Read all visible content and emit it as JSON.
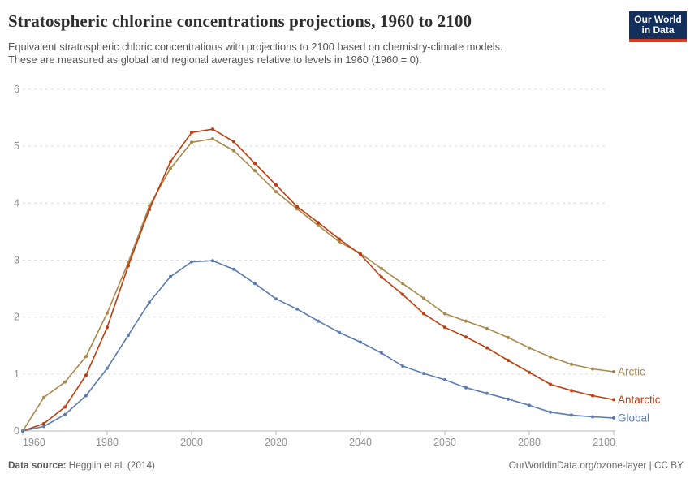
{
  "header": {
    "title": "Stratospheric chlorine concentrations projections, 1960 to 2100",
    "subtitle_lines": [
      "Equivalent stratospheric chloric concentrations with projections to 2100 based on chemistry-climate models.",
      "These are measured as global and regional averages relative to levels in 1960 (1960 = 0)."
    ],
    "logo": {
      "line1": "Our World",
      "line2": "in Data",
      "bg_color": "#12305B",
      "stripe_color": "#E0351C"
    }
  },
  "footer": {
    "source_label": "Data source:",
    "source_value": " Hegglin et al. (2014)",
    "credit": "OurWorldinData.org/ozone-layer | CC BY"
  },
  "chart_data": {
    "type": "line",
    "title": "Stratospheric chlorine concentrations projections, 1960 to 2100",
    "xlabel": "",
    "ylabel": "",
    "xlim": [
      1960,
      2100
    ],
    "ylim": [
      0,
      6
    ],
    "grid": true,
    "gridline_color": "#dcdcdc",
    "axis_color": "#b9b9b9",
    "tick_label_color": "#8e8e8e",
    "legend_position": "right-of-line-ends",
    "x_ticks": [
      1960,
      1980,
      2000,
      2020,
      2040,
      2060,
      2080,
      2100
    ],
    "y_ticks": [
      0,
      1,
      2,
      3,
      4,
      5,
      6
    ],
    "x": [
      1960,
      1965,
      1970,
      1975,
      1980,
      1985,
      1990,
      1995,
      2000,
      2005,
      2010,
      2015,
      2020,
      2025,
      2030,
      2035,
      2040,
      2045,
      2050,
      2055,
      2060,
      2065,
      2070,
      2075,
      2080,
      2085,
      2090,
      2095,
      2100
    ],
    "series": [
      {
        "name": "Arctic",
        "color": "#A9894B",
        "values": [
          0,
          0.59,
          0.86,
          1.31,
          2.07,
          2.96,
          3.95,
          4.61,
          5.07,
          5.13,
          4.92,
          4.57,
          4.2,
          3.9,
          3.61,
          3.32,
          3.12,
          2.85,
          2.59,
          2.33,
          2.06,
          1.93,
          1.8,
          1.64,
          1.46,
          1.3,
          1.17,
          1.09,
          1.04
        ]
      },
      {
        "name": "Antarctic",
        "color": "#BE3D0E",
        "values": [
          0,
          0.13,
          0.42,
          0.98,
          1.82,
          2.9,
          3.89,
          4.73,
          5.24,
          5.3,
          5.08,
          4.7,
          4.32,
          3.94,
          3.66,
          3.37,
          3.1,
          2.7,
          2.4,
          2.06,
          1.82,
          1.65,
          1.46,
          1.24,
          1.03,
          0.82,
          0.71,
          0.62,
          0.55
        ]
      },
      {
        "name": "Global",
        "color": "#5B7CB0",
        "values": [
          0,
          0.08,
          0.29,
          0.62,
          1.1,
          1.68,
          2.26,
          2.71,
          2.97,
          2.99,
          2.84,
          2.59,
          2.32,
          2.14,
          1.93,
          1.73,
          1.56,
          1.37,
          1.14,
          1.01,
          0.9,
          0.76,
          0.66,
          0.56,
          0.45,
          0.33,
          0.28,
          0.25,
          0.23
        ]
      }
    ]
  }
}
